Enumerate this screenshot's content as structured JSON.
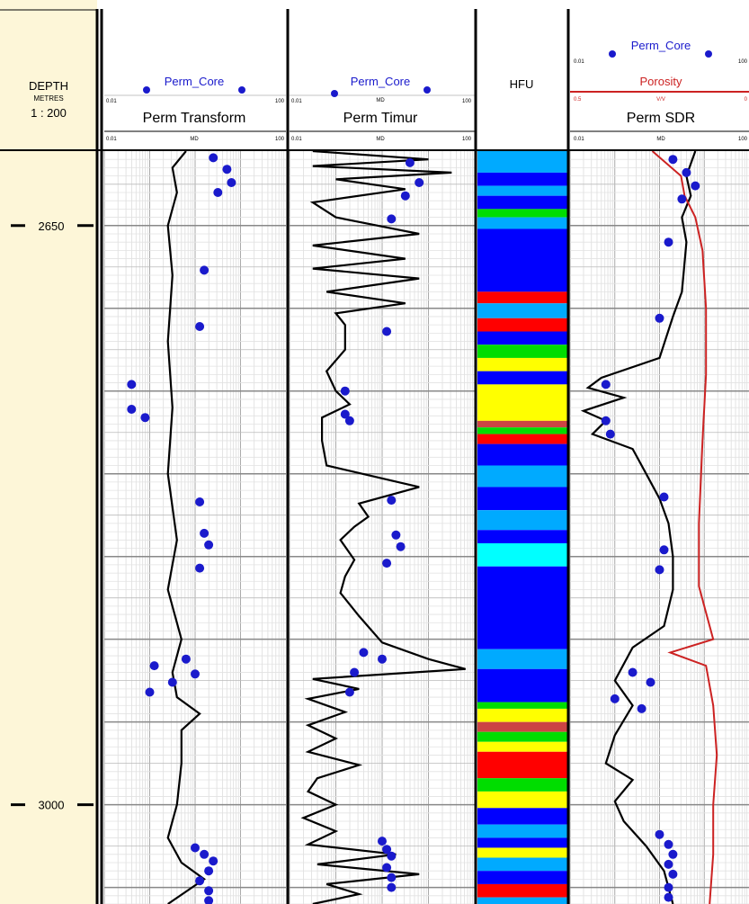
{
  "chart_data": {
    "type": "scatter",
    "depth_track": {
      "title": "DEPTH",
      "unit": "METRES",
      "scale": "1 : 200",
      "depth_range": [
        2605,
        3060
      ],
      "ticks": [
        {
          "depth": 2650,
          "label": "2650"
        },
        {
          "depth": 3000,
          "label": "3000"
        }
      ]
    },
    "tracks": [
      {
        "id": "perm-transform",
        "title": "Perm Transform",
        "scale_left": "0.01",
        "scale_unit": "MD",
        "scale_right": "100",
        "legend_left": "0.01",
        "legend_right": "100",
        "core_legend": "Perm_Core",
        "curve": [
          [
            2605,
            -0.2
          ],
          [
            2615,
            -0.5
          ],
          [
            2630,
            -0.4
          ],
          [
            2650,
            -0.6
          ],
          [
            2680,
            -0.5
          ],
          [
            2720,
            -0.6
          ],
          [
            2760,
            -0.5
          ],
          [
            2800,
            -0.6
          ],
          [
            2840,
            -0.4
          ],
          [
            2870,
            -0.6
          ],
          [
            2900,
            -0.3
          ],
          [
            2920,
            -0.5
          ],
          [
            2935,
            -0.4
          ],
          [
            2945,
            0.1
          ],
          [
            2955,
            -0.3
          ],
          [
            2975,
            -0.3
          ],
          [
            3000,
            -0.4
          ],
          [
            3020,
            -0.6
          ],
          [
            3035,
            -0.3
          ],
          [
            3045,
            0.2
          ],
          [
            3060,
            -0.6
          ]
        ],
        "core_points": [
          [
            2609,
            0.4
          ],
          [
            2616,
            0.7
          ],
          [
            2624,
            0.8
          ],
          [
            2630,
            0.5
          ],
          [
            2677,
            0.2
          ],
          [
            2711,
            0.1
          ],
          [
            2746,
            -1.4
          ],
          [
            2761,
            -1.4
          ],
          [
            2766,
            -1.1
          ],
          [
            2817,
            0.1
          ],
          [
            2836,
            0.2
          ],
          [
            2843,
            0.3
          ],
          [
            2857,
            0.1
          ],
          [
            2912,
            -0.2
          ],
          [
            2916,
            -0.9
          ],
          [
            2921,
            0.0
          ],
          [
            2926,
            -0.5
          ],
          [
            2932,
            -1.0
          ],
          [
            3026,
            0.0
          ],
          [
            3030,
            0.2
          ],
          [
            3034,
            0.4
          ],
          [
            3040,
            0.3
          ],
          [
            3046,
            0.1
          ],
          [
            3052,
            0.3
          ],
          [
            3058,
            0.3
          ]
        ]
      },
      {
        "id": "perm-timur",
        "title": "Perm Timur",
        "scale_left": "0.01",
        "scale_unit": "MD",
        "scale_right": "100",
        "legend_left": "0.01",
        "legend_right": "100",
        "core_legend": "Perm_Core",
        "curve": [
          [
            2605,
            -1.5
          ],
          [
            2610,
            1.0
          ],
          [
            2614,
            -1.5
          ],
          [
            2618,
            1.5
          ],
          [
            2622,
            -1.0
          ],
          [
            2628,
            0.5
          ],
          [
            2636,
            -1.5
          ],
          [
            2645,
            -1.0
          ],
          [
            2655,
            0.8
          ],
          [
            2662,
            -1.5
          ],
          [
            2670,
            0.5
          ],
          [
            2676,
            -1.5
          ],
          [
            2682,
            0.8
          ],
          [
            2690,
            -1.2
          ],
          [
            2697,
            0.5
          ],
          [
            2703,
            -1.0
          ],
          [
            2710,
            -0.8
          ],
          [
            2725,
            -0.8
          ],
          [
            2738,
            -1.2
          ],
          [
            2750,
            -1.0
          ],
          [
            2758,
            -0.7
          ],
          [
            2766,
            -1.3
          ],
          [
            2780,
            -1.3
          ],
          [
            2795,
            -1.2
          ],
          [
            2808,
            0.8
          ],
          [
            2818,
            -0.5
          ],
          [
            2826,
            -0.3
          ],
          [
            2832,
            -0.6
          ],
          [
            2840,
            -0.9
          ],
          [
            2852,
            -0.6
          ],
          [
            2862,
            -0.8
          ],
          [
            2872,
            -0.9
          ],
          [
            2886,
            -0.5
          ],
          [
            2902,
            0.0
          ],
          [
            2912,
            1.0
          ],
          [
            2918,
            1.8
          ],
          [
            2924,
            -1.5
          ],
          [
            2930,
            -0.5
          ],
          [
            2936,
            -1.6
          ],
          [
            2944,
            -0.8
          ],
          [
            2952,
            -1.6
          ],
          [
            2960,
            -1.0
          ],
          [
            2968,
            -1.6
          ],
          [
            2976,
            -0.5
          ],
          [
            2984,
            -1.4
          ],
          [
            2992,
            -1.6
          ],
          [
            3000,
            -1.0
          ],
          [
            3008,
            -1.7
          ],
          [
            3016,
            -1.0
          ],
          [
            3024,
            -1.6
          ],
          [
            3030,
            0.3
          ],
          [
            3036,
            -1.4
          ],
          [
            3042,
            0.8
          ],
          [
            3048,
            -1.2
          ],
          [
            3054,
            -0.5
          ],
          [
            3060,
            -1.5
          ]
        ],
        "core_points": [
          [
            2612,
            0.6
          ],
          [
            2624,
            0.8
          ],
          [
            2632,
            0.5
          ],
          [
            2646,
            0.2
          ],
          [
            2714,
            0.1
          ],
          [
            2750,
            -0.8
          ],
          [
            2764,
            -0.8
          ],
          [
            2768,
            -0.7
          ],
          [
            2816,
            0.2
          ],
          [
            2837,
            0.3
          ],
          [
            2844,
            0.4
          ],
          [
            2854,
            0.1
          ],
          [
            2908,
            -0.4
          ],
          [
            2912,
            0.0
          ],
          [
            2920,
            -0.6
          ],
          [
            2932,
            -0.7
          ],
          [
            3022,
            0.0
          ],
          [
            3027,
            0.1
          ],
          [
            3031,
            0.2
          ],
          [
            3038,
            0.1
          ],
          [
            3044,
            0.2
          ],
          [
            3050,
            0.2
          ]
        ]
      },
      {
        "id": "hfu",
        "title": "HFU",
        "type": "facies",
        "colors": {
          "1": "#0000ff",
          "2": "#00aaff",
          "3": "#00ffff",
          "4": "#00dd00",
          "5": "#ffff00",
          "6": "#ff0000",
          "7": "#cc4444"
        },
        "intervals": [
          [
            2605,
            2618,
            2
          ],
          [
            2618,
            2626,
            1
          ],
          [
            2626,
            2632,
            2
          ],
          [
            2632,
            2640,
            1
          ],
          [
            2640,
            2645,
            4
          ],
          [
            2645,
            2652,
            2
          ],
          [
            2652,
            2690,
            1
          ],
          [
            2690,
            2697,
            6
          ],
          [
            2697,
            2706,
            2
          ],
          [
            2706,
            2714,
            6
          ],
          [
            2714,
            2722,
            1
          ],
          [
            2722,
            2730,
            4
          ],
          [
            2730,
            2738,
            5
          ],
          [
            2738,
            2746,
            1
          ],
          [
            2746,
            2768,
            5
          ],
          [
            2768,
            2772,
            7
          ],
          [
            2772,
            2776,
            4
          ],
          [
            2776,
            2782,
            6
          ],
          [
            2782,
            2795,
            1
          ],
          [
            2795,
            2808,
            2
          ],
          [
            2808,
            2822,
            1
          ],
          [
            2822,
            2834,
            2
          ],
          [
            2834,
            2842,
            1
          ],
          [
            2842,
            2856,
            3
          ],
          [
            2856,
            2906,
            1
          ],
          [
            2906,
            2918,
            2
          ],
          [
            2918,
            2938,
            1
          ],
          [
            2938,
            2942,
            4
          ],
          [
            2942,
            2950,
            5
          ],
          [
            2950,
            2956,
            7
          ],
          [
            2956,
            2962,
            4
          ],
          [
            2962,
            2968,
            5
          ],
          [
            2968,
            2984,
            6
          ],
          [
            2984,
            2992,
            4
          ],
          [
            2992,
            3002,
            5
          ],
          [
            3002,
            3012,
            1
          ],
          [
            3012,
            3020,
            2
          ],
          [
            3020,
            3026,
            1
          ],
          [
            3026,
            3032,
            5
          ],
          [
            3032,
            3040,
            2
          ],
          [
            3040,
            3048,
            1
          ],
          [
            3048,
            3056,
            6
          ],
          [
            3056,
            3060,
            2
          ]
        ]
      },
      {
        "id": "perm-sdr",
        "title": "Perm SDR",
        "scale_left": "0.01",
        "scale_unit": "MD",
        "scale_right": "100",
        "legend_left": "0.01",
        "legend_right": "100",
        "core_legend": "Perm_Core",
        "porosity_label": "Porosity",
        "porosity_scale_left": "0.5",
        "porosity_scale_unit": "V/V",
        "porosity_scale_right": "0",
        "curve": [
          [
            2605,
            0.8
          ],
          [
            2620,
            0.6
          ],
          [
            2632,
            0.7
          ],
          [
            2645,
            0.5
          ],
          [
            2660,
            0.6
          ],
          [
            2690,
            0.5
          ],
          [
            2705,
            0.3
          ],
          [
            2730,
            0.0
          ],
          [
            2742,
            -1.3
          ],
          [
            2748,
            -1.6
          ],
          [
            2754,
            -0.8
          ],
          [
            2762,
            -1.7
          ],
          [
            2768,
            -1.2
          ],
          [
            2776,
            -1.5
          ],
          [
            2785,
            -0.6
          ],
          [
            2800,
            -0.3
          ],
          [
            2815,
            0.0
          ],
          [
            2830,
            0.2
          ],
          [
            2850,
            0.3
          ],
          [
            2870,
            0.3
          ],
          [
            2892,
            0.1
          ],
          [
            2905,
            -0.6
          ],
          [
            2925,
            -1.0
          ],
          [
            2940,
            -0.6
          ],
          [
            2958,
            -1.0
          ],
          [
            2975,
            -1.2
          ],
          [
            2985,
            -0.6
          ],
          [
            2998,
            -1.0
          ],
          [
            3010,
            -0.8
          ],
          [
            3025,
            -0.3
          ],
          [
            3040,
            0.1
          ],
          [
            3060,
            0.3
          ]
        ],
        "core_points": [
          [
            2610,
            0.3
          ],
          [
            2618,
            0.6
          ],
          [
            2626,
            0.8
          ],
          [
            2634,
            0.5
          ],
          [
            2660,
            0.2
          ],
          [
            2706,
            0.0
          ],
          [
            2746,
            -1.2
          ],
          [
            2768,
            -1.2
          ],
          [
            2776,
            -1.1
          ],
          [
            2814,
            0.1
          ],
          [
            2846,
            0.1
          ],
          [
            2858,
            0.0
          ],
          [
            2920,
            -0.6
          ],
          [
            2926,
            -0.2
          ],
          [
            2936,
            -1.0
          ],
          [
            2942,
            -0.4
          ],
          [
            3018,
            0.0
          ],
          [
            3024,
            0.2
          ],
          [
            3030,
            0.3
          ],
          [
            3036,
            0.2
          ],
          [
            3042,
            0.3
          ],
          [
            3050,
            0.2
          ],
          [
            3056,
            0.2
          ]
        ],
        "porosity_curve": [
          [
            2605,
            0.27
          ],
          [
            2620,
            0.19
          ],
          [
            2632,
            0.18
          ],
          [
            2645,
            0.15
          ],
          [
            2665,
            0.13
          ],
          [
            2700,
            0.12
          ],
          [
            2740,
            0.12
          ],
          [
            2780,
            0.13
          ],
          [
            2830,
            0.14
          ],
          [
            2868,
            0.14
          ],
          [
            2900,
            0.1
          ],
          [
            2908,
            0.22
          ],
          [
            2916,
            0.12
          ],
          [
            2940,
            0.1
          ],
          [
            2970,
            0.09
          ],
          [
            3000,
            0.1
          ],
          [
            3030,
            0.1
          ],
          [
            3060,
            0.11
          ]
        ]
      }
    ],
    "colors": {
      "curve": "#000000",
      "core": "#1a1acc",
      "porosity": "#cc2222",
      "depth_bg": "#fdf6d8"
    }
  }
}
